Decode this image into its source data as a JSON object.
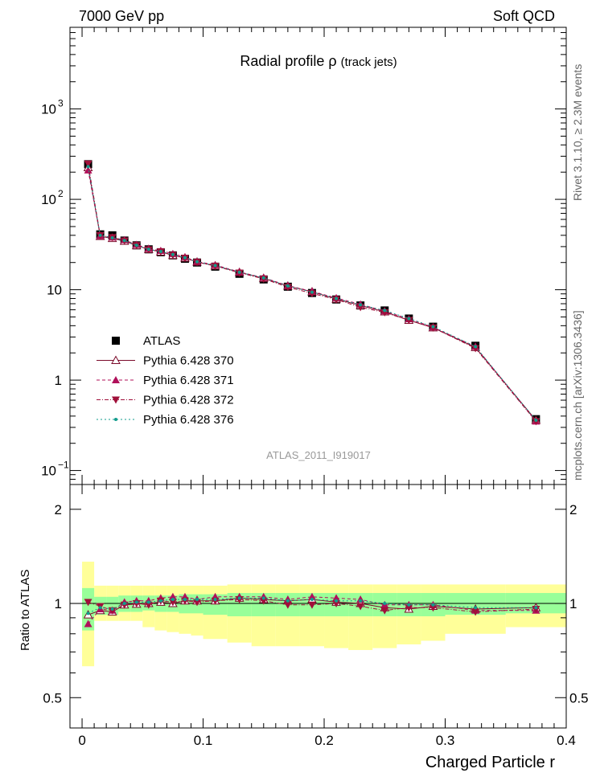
{
  "header": {
    "left": "7000 GeV pp",
    "right": "Soft QCD",
    "title_main": "Radial profile  ρ",
    "title_sub": "(track jets)",
    "watermark": "ATLAS_2011_I919017",
    "side_top": "Rivet 3.1.10, ≥ 2.3M events",
    "side_bottom": "mcplots.cern.ch [arXiv:1306.3436]"
  },
  "axes": {
    "xlabel": "Charged Particle r",
    "ratio_ylabel": "Ratio to ATLAS",
    "x_ticks": [
      "0",
      "0.1",
      "0.2",
      "0.3",
      "0.4"
    ],
    "main_y_ticks": [
      "10",
      "1",
      "10",
      "10",
      "1",
      "10"
    ],
    "main_y_exponents": [
      "−1",
      "",
      "",
      "2",
      "",
      "3"
    ],
    "ratio_y_ticks": [
      "0.5",
      "1",
      "2"
    ],
    "ratio_y_ticks_right": [
      "0.5",
      "1",
      "2"
    ]
  },
  "legend": {
    "entries": [
      "ATLAS",
      "Pythia 6.428 370",
      "Pythia 6.428 371",
      "Pythia 6.428 372",
      "Pythia 6.428 376"
    ]
  },
  "colors": {
    "data": "#000000",
    "p370": "#7a0a2a",
    "p371": "#b0105a",
    "p372": "#a0103a",
    "p376": "#129c8c",
    "band_inner": "#99ff99",
    "band_outer": "#ffff99"
  },
  "chart_data": {
    "type": "scatter",
    "x": [
      0.005,
      0.015,
      0.025,
      0.035,
      0.045,
      0.055,
      0.065,
      0.075,
      0.085,
      0.095,
      0.11,
      0.13,
      0.15,
      0.17,
      0.19,
      0.21,
      0.23,
      0.25,
      0.27,
      0.29,
      0.325,
      0.375
    ],
    "xlim": [
      -0.01,
      0.4
    ],
    "main_yscale": "log",
    "main_ylim": [
      0.07,
      8000
    ],
    "ratio_ylim": [
      0.4,
      2.4
    ],
    "series": [
      {
        "name": "ATLAS",
        "values": [
          245,
          41,
          40,
          35,
          31,
          28,
          26,
          24,
          22,
          20,
          18,
          15,
          13,
          10.8,
          9.2,
          7.8,
          6.7,
          5.9,
          4.8,
          3.9,
          2.4,
          0.37
        ]
      },
      {
        "name": "Pythia 6.428 370",
        "values": [
          225,
          39,
          37,
          34.5,
          30.8,
          28,
          26.2,
          24,
          22.5,
          20.3,
          18.4,
          15.6,
          13.4,
          11,
          9.5,
          7.9,
          6.7,
          5.7,
          4.6,
          3.8,
          2.3,
          0.36
        ],
        "ratio": [
          0.92,
          0.95,
          0.94,
          0.99,
          0.995,
          1.0,
          1.01,
          1.0,
          1.02,
          1.02,
          1.02,
          1.04,
          1.03,
          1.02,
          1.03,
          1.01,
          1.0,
          0.97,
          0.96,
          0.98,
          0.96,
          0.97
        ]
      },
      {
        "name": "Pythia 6.428 371",
        "values": [
          210,
          39.5,
          38,
          35.5,
          31.5,
          28.5,
          27,
          25,
          23,
          20.5,
          18.8,
          15.7,
          13.6,
          11.1,
          9.6,
          8.1,
          6.9,
          5.8,
          4.75,
          3.85,
          2.35,
          0.35
        ],
        "ratio": [
          0.86,
          0.96,
          0.95,
          1.01,
          1.02,
          1.02,
          1.04,
          1.05,
          1.05,
          1.03,
          1.05,
          1.05,
          1.05,
          1.03,
          1.05,
          1.04,
          1.03,
          0.99,
          0.99,
          0.99,
          0.95,
          0.95
        ]
      },
      {
        "name": "Pythia 6.428 372",
        "values": [
          248,
          40,
          38,
          34.8,
          31,
          27.8,
          26.5,
          24.2,
          22.4,
          20.2,
          18.3,
          15.4,
          13.2,
          10.7,
          9.1,
          7.8,
          6.4,
          5.6,
          4.6,
          3.8,
          2.25,
          0.35
        ],
        "ratio": [
          1.01,
          0.98,
          0.95,
          0.99,
          1.0,
          0.99,
          1.02,
          1.01,
          1.02,
          1.01,
          1.02,
          1.03,
          1.02,
          0.99,
          0.99,
          1.0,
          0.98,
          0.95,
          0.97,
          0.97,
          0.94,
          0.96
        ]
      },
      {
        "name": "Pythia 6.428 376",
        "values": [
          230,
          40,
          37.5,
          35,
          31,
          28,
          26.5,
          24.5,
          22.6,
          20.4,
          18.5,
          15.6,
          13.5,
          11,
          9.4,
          8,
          6.8,
          5.9,
          4.8,
          3.9,
          2.35,
          0.36
        ],
        "ratio": [
          0.93,
          0.97,
          0.96,
          1.0,
          1.01,
          1.01,
          1.02,
          1.03,
          1.03,
          1.03,
          1.03,
          1.04,
          1.04,
          1.02,
          1.03,
          1.02,
          1.02,
          1.0,
          0.99,
          0.99,
          0.97,
          0.97
        ]
      }
    ],
    "band_inner": {
      "low": [
        0.82,
        0.92,
        0.92,
        0.94,
        0.94,
        0.95,
        0.94,
        0.94,
        0.93,
        0.93,
        0.92,
        0.91,
        0.91,
        0.91,
        0.91,
        0.91,
        0.91,
        0.91,
        0.91,
        0.91,
        0.92,
        0.93
      ],
      "high": [
        1.12,
        1.05,
        1.05,
        1.06,
        1.06,
        1.06,
        1.06,
        1.06,
        1.07,
        1.07,
        1.07,
        1.08,
        1.08,
        1.08,
        1.08,
        1.08,
        1.08,
        1.08,
        1.08,
        1.08,
        1.08,
        1.08
      ]
    },
    "band_outer": {
      "low": [
        0.63,
        0.88,
        0.88,
        0.88,
        0.88,
        0.84,
        0.82,
        0.81,
        0.8,
        0.79,
        0.77,
        0.75,
        0.73,
        0.73,
        0.73,
        0.72,
        0.71,
        0.72,
        0.74,
        0.76,
        0.8,
        0.84
      ],
      "high": [
        1.36,
        1.14,
        1.14,
        1.14,
        1.14,
        1.14,
        1.14,
        1.14,
        1.14,
        1.14,
        1.14,
        1.15,
        1.15,
        1.15,
        1.15,
        1.15,
        1.15,
        1.15,
        1.15,
        1.15,
        1.15,
        1.15
      ]
    },
    "bin_edges": [
      0.0,
      0.01,
      0.02,
      0.03,
      0.04,
      0.05,
      0.06,
      0.07,
      0.08,
      0.09,
      0.1,
      0.12,
      0.14,
      0.16,
      0.18,
      0.2,
      0.22,
      0.24,
      0.26,
      0.28,
      0.3,
      0.35,
      0.4
    ]
  }
}
